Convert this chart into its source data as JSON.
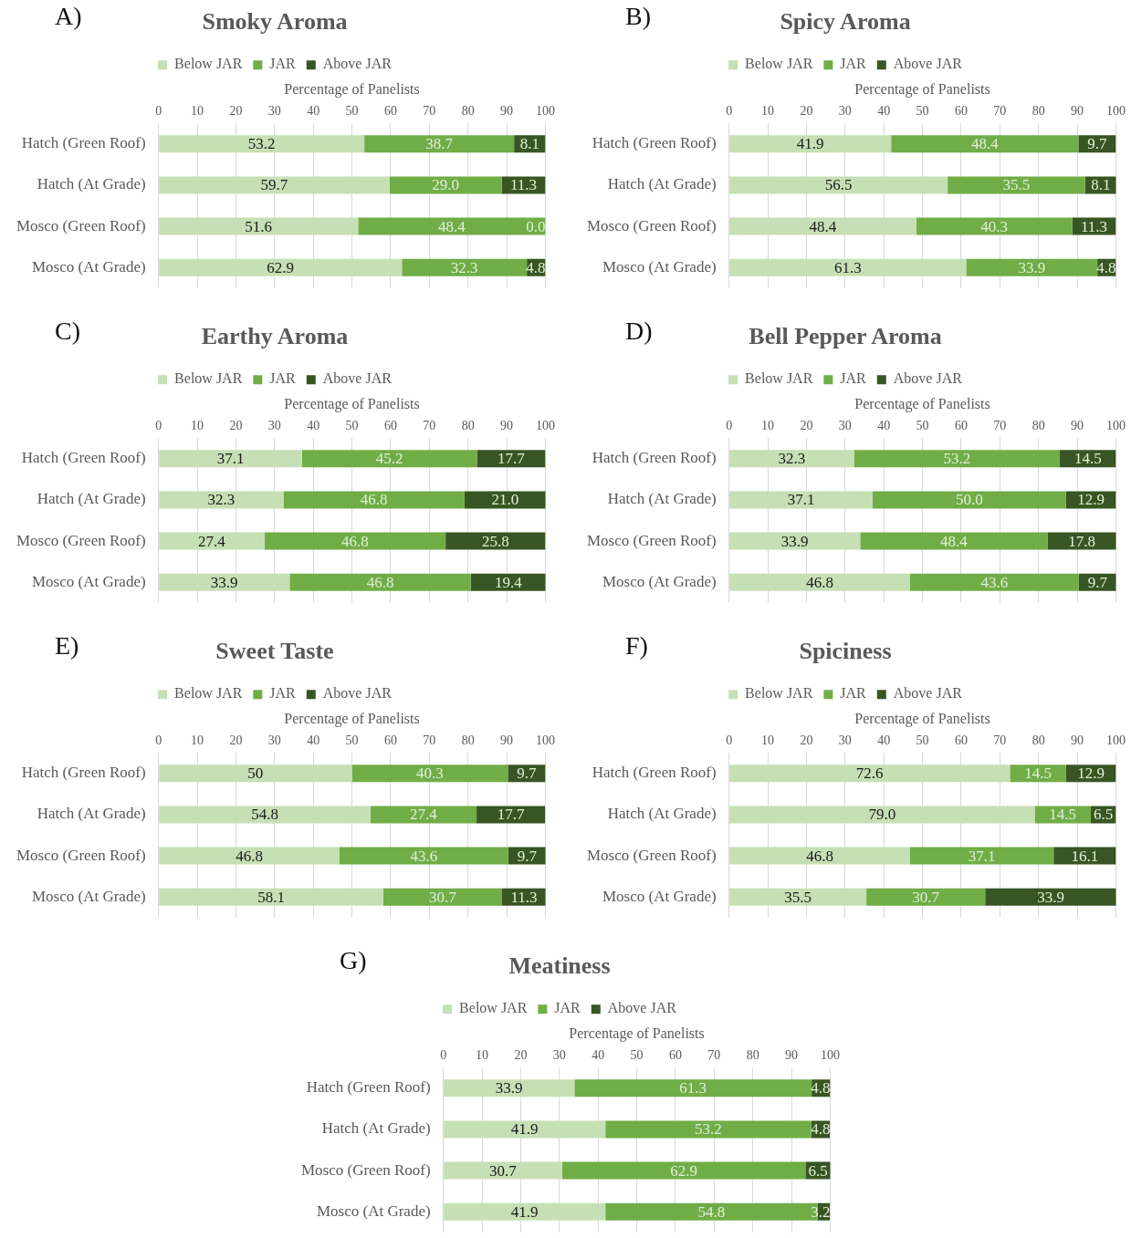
{
  "chart_data": [
    {
      "type": "bar",
      "orientation": "horizontal",
      "stacked": true,
      "title": "Smoky Aroma",
      "annotations": [
        "A)"
      ],
      "xlabel": "Percentage of Panelists",
      "categories": [
        "Hatch (Green Roof)",
        "Hatch (At Grade)",
        "Mosco (Green Roof)",
        "Mosco (At Grade)"
      ],
      "xlim": [
        0,
        100
      ],
      "xticks": [
        0,
        10,
        20,
        30,
        40,
        50,
        60,
        70,
        80,
        90,
        100
      ],
      "grid": "x",
      "legend": "top",
      "series": [
        {
          "name": "Below JAR",
          "color": "#c5e0b4",
          "values": [
            53.2,
            59.7,
            51.6,
            62.9
          ],
          "value_labels": [
            "53.2",
            "59.7",
            "51.6",
            "62.9"
          ]
        },
        {
          "name": "JAR",
          "color": "#70ad47",
          "values": [
            38.7,
            29.0,
            48.4,
            32.3
          ],
          "value_labels": [
            "38.7",
            "29.0",
            "48.4",
            "32.3"
          ]
        },
        {
          "name": "Above JAR",
          "color": "#375623",
          "values": [
            8.1,
            11.3,
            0,
            4.8
          ],
          "value_labels": [
            "8.1",
            "11.3",
            "0.0",
            "4.8"
          ]
        }
      ]
    },
    {
      "type": "bar",
      "orientation": "horizontal",
      "stacked": true,
      "title": "Spicy Aroma",
      "annotations": [
        "B)"
      ],
      "xlabel": "Percentage of Panelists",
      "categories": [
        "Hatch (Green Roof)",
        "Hatch (At Grade)",
        "Mosco (Green Roof)",
        "Mosco (At Grade)"
      ],
      "xlim": [
        0,
        100
      ],
      "xticks": [
        0,
        10,
        20,
        30,
        40,
        50,
        60,
        70,
        80,
        90,
        100
      ],
      "grid": "x",
      "legend": "top",
      "series": [
        {
          "name": "Below JAR",
          "color": "#c5e0b4",
          "values": [
            41.9,
            56.5,
            48.4,
            61.3
          ],
          "value_labels": [
            "41.9",
            "56.5",
            "48.4",
            "61.3"
          ]
        },
        {
          "name": "JAR",
          "color": "#70ad47",
          "values": [
            48.4,
            35.5,
            40.3,
            33.9
          ],
          "value_labels": [
            "48.4",
            "35.5",
            "40.3",
            "33.9"
          ]
        },
        {
          "name": "Above JAR",
          "color": "#375623",
          "values": [
            9.7,
            8.1,
            11.3,
            4.8
          ],
          "value_labels": [
            "9.7",
            "8.1",
            "11.3",
            "4.8"
          ]
        }
      ]
    },
    {
      "type": "bar",
      "orientation": "horizontal",
      "stacked": true,
      "title": "Earthy Aroma",
      "annotations": [
        "C)"
      ],
      "xlabel": "Percentage of Panelists",
      "categories": [
        "Hatch (Green Roof)",
        "Hatch (At Grade)",
        "Mosco (Green Roof)",
        "Mosco (At Grade)"
      ],
      "xlim": [
        0,
        100
      ],
      "xticks": [
        0,
        10,
        20,
        30,
        40,
        50,
        60,
        70,
        80,
        90,
        100
      ],
      "grid": "x",
      "legend": "top",
      "series": [
        {
          "name": "Below JAR",
          "color": "#c5e0b4",
          "values": [
            37.1,
            32.3,
            27.4,
            33.9
          ],
          "value_labels": [
            "37.1",
            "32.3",
            "27.4",
            "33.9"
          ]
        },
        {
          "name": "JAR",
          "color": "#70ad47",
          "values": [
            45.2,
            46.8,
            46.8,
            46.8
          ],
          "value_labels": [
            "45.2",
            "46.8",
            "46.8",
            "46.8"
          ]
        },
        {
          "name": "Above JAR",
          "color": "#375623",
          "values": [
            17.7,
            21.0,
            25.8,
            19.4
          ],
          "value_labels": [
            "17.7",
            "21.0",
            "25.8",
            "19.4"
          ]
        }
      ]
    },
    {
      "type": "bar",
      "orientation": "horizontal",
      "stacked": true,
      "title": "Bell Pepper Aroma",
      "annotations": [
        "D)"
      ],
      "xlabel": "Percentage of Panelists",
      "categories": [
        "Hatch (Green Roof)",
        "Hatch (At Grade)",
        "Mosco (Green Roof)",
        "Mosco (At Grade)"
      ],
      "xlim": [
        0,
        100
      ],
      "xticks": [
        0,
        10,
        20,
        30,
        40,
        50,
        60,
        70,
        80,
        90,
        100
      ],
      "grid": "x",
      "legend": "top",
      "series": [
        {
          "name": "Below JAR",
          "color": "#c5e0b4",
          "values": [
            32.3,
            37.1,
            33.9,
            46.8
          ],
          "value_labels": [
            "32.3",
            "37.1",
            "33.9",
            "46.8"
          ]
        },
        {
          "name": "JAR",
          "color": "#70ad47",
          "values": [
            53.2,
            50.0,
            48.4,
            43.6
          ],
          "value_labels": [
            "53.2",
            "50.0",
            "48.4",
            "43.6"
          ]
        },
        {
          "name": "Above JAR",
          "color": "#375623",
          "values": [
            14.5,
            12.9,
            17.8,
            9.7
          ],
          "value_labels": [
            "14.5",
            "12.9",
            "17.8",
            "9.7"
          ]
        }
      ]
    },
    {
      "type": "bar",
      "orientation": "horizontal",
      "stacked": true,
      "title": "Sweet Taste",
      "annotations": [
        "E)"
      ],
      "xlabel": "Percentage of Panelists",
      "categories": [
        "Hatch (Green Roof)",
        "Hatch (At Grade)",
        "Mosco (Green Roof)",
        "Mosco (At Grade)"
      ],
      "xlim": [
        0,
        100
      ],
      "xticks": [
        0,
        10,
        20,
        30,
        40,
        50,
        60,
        70,
        80,
        90,
        100
      ],
      "grid": "x",
      "legend": "top",
      "series": [
        {
          "name": "Below JAR",
          "color": "#c5e0b4",
          "values": [
            50,
            54.8,
            46.8,
            58.1
          ],
          "value_labels": [
            "50",
            "54.8",
            "46.8",
            "58.1"
          ]
        },
        {
          "name": "JAR",
          "color": "#70ad47",
          "values": [
            40.3,
            27.4,
            43.6,
            30.7
          ],
          "value_labels": [
            "40.3",
            "27.4",
            "43.6",
            "30.7"
          ]
        },
        {
          "name": "Above JAR",
          "color": "#375623",
          "values": [
            9.7,
            17.7,
            9.7,
            11.3
          ],
          "value_labels": [
            "9.7",
            "17.7",
            "9.7",
            "11.3"
          ]
        }
      ]
    },
    {
      "type": "bar",
      "orientation": "horizontal",
      "stacked": true,
      "title": "Spiciness",
      "annotations": [
        "F)"
      ],
      "xlabel": "Percentage of Panelists",
      "categories": [
        "Hatch (Green Roof)",
        "Hatch (At Grade)",
        "Mosco (Green Roof)",
        "Mosco (At Grade)"
      ],
      "xlim": [
        0,
        100
      ],
      "xticks": [
        0,
        10,
        20,
        30,
        40,
        50,
        60,
        70,
        80,
        90,
        100
      ],
      "grid": "x",
      "legend": "top",
      "series": [
        {
          "name": "Below JAR",
          "color": "#c5e0b4",
          "values": [
            72.6,
            79.0,
            46.8,
            35.5
          ],
          "value_labels": [
            "72.6",
            "79.0",
            "46.8",
            "35.5"
          ]
        },
        {
          "name": "JAR",
          "color": "#70ad47",
          "values": [
            14.5,
            14.5,
            37.1,
            30.7
          ],
          "value_labels": [
            "14.5",
            "14.5",
            "37.1",
            "30.7"
          ]
        },
        {
          "name": "Above JAR",
          "color": "#375623",
          "values": [
            12.9,
            6.5,
            16.1,
            33.9
          ],
          "value_labels": [
            "12.9",
            "6.5",
            "16.1",
            "33.9"
          ]
        }
      ]
    },
    {
      "type": "bar",
      "orientation": "horizontal",
      "stacked": true,
      "title": "Meatiness",
      "annotations": [
        "G)"
      ],
      "xlabel": "Percentage of Panelists",
      "categories": [
        "Hatch (Green Roof)",
        "Hatch (At Grade)",
        "Mosco (Green Roof)",
        "Mosco (At Grade)"
      ],
      "xlim": [
        0,
        100
      ],
      "xticks": [
        0,
        10,
        20,
        30,
        40,
        50,
        60,
        70,
        80,
        90,
        100
      ],
      "grid": "x",
      "legend": "top",
      "series": [
        {
          "name": "Below JAR",
          "color": "#c5e0b4",
          "values": [
            33.9,
            41.9,
            30.7,
            41.9
          ],
          "value_labels": [
            "33.9",
            "41.9",
            "30.7",
            "41.9"
          ]
        },
        {
          "name": "JAR",
          "color": "#70ad47",
          "values": [
            61.3,
            53.2,
            62.9,
            54.8
          ],
          "value_labels": [
            "61.3",
            "53.2",
            "62.9",
            "54.8"
          ]
        },
        {
          "name": "Above JAR",
          "color": "#375623",
          "values": [
            4.8,
            4.8,
            6.5,
            3.2
          ],
          "value_labels": [
            "4.8",
            "4.8",
            "6.5",
            "3.2"
          ]
        }
      ]
    }
  ]
}
